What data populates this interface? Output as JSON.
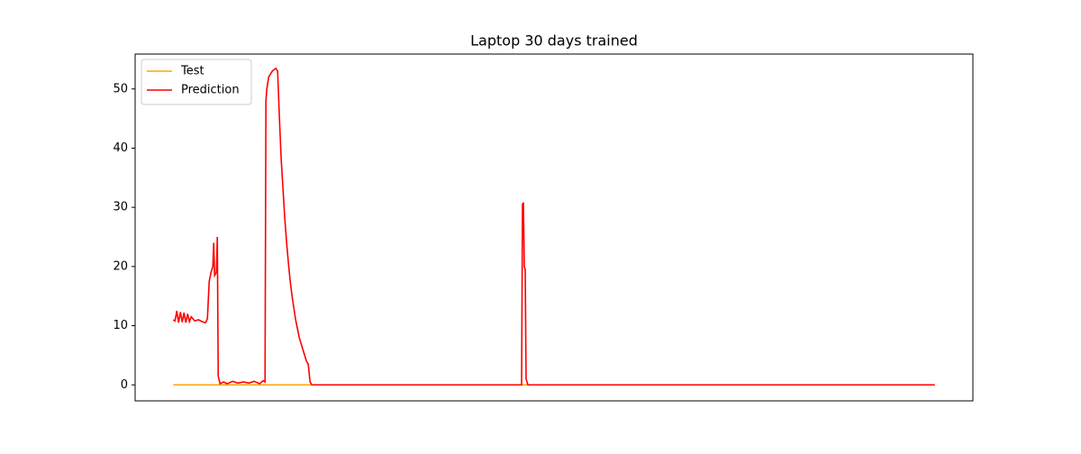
{
  "chart_data": {
    "type": "line",
    "title": "Laptop 30 days trained",
    "x": [
      0,
      2,
      4,
      6,
      8,
      10,
      12,
      14,
      16,
      18,
      20,
      24,
      28,
      32,
      36,
      38,
      40,
      42,
      44,
      45,
      46,
      48,
      49,
      50,
      52,
      56,
      60,
      66,
      72,
      78,
      84,
      90,
      96,
      100,
      102,
      103,
      104,
      106,
      110,
      114,
      116,
      118,
      120,
      122,
      124,
      126,
      128,
      130,
      132,
      134,
      136,
      138,
      140,
      142,
      144,
      146,
      148,
      150,
      152,
      154,
      387,
      388,
      389,
      390,
      391,
      392,
      394,
      846
    ],
    "series": [
      {
        "name": "Test",
        "color": "#ffa500",
        "values": [
          0,
          0,
          0,
          0,
          0,
          0,
          0,
          0,
          0,
          0,
          0,
          0,
          0,
          0,
          0,
          0,
          0,
          0,
          0,
          0,
          0,
          0,
          0,
          0,
          0,
          0,
          0,
          0,
          0,
          0,
          0,
          0,
          0,
          0,
          0,
          0,
          0,
          0,
          0,
          0,
          0,
          0,
          0,
          0,
          0,
          0,
          0,
          0,
          0,
          0,
          0,
          0,
          0,
          0,
          0,
          0,
          0,
          0,
          0,
          0,
          0,
          0,
          0,
          0,
          0,
          0,
          0,
          0
        ]
      },
      {
        "name": "Prediction",
        "color": "#ff0000",
        "values": [
          11,
          10.8,
          12.5,
          10.5,
          12.3,
          10.6,
          12.2,
          10.5,
          12,
          10.7,
          11.5,
          10.8,
          11,
          10.7,
          10.5,
          11.2,
          17.5,
          19,
          20,
          24,
          18.5,
          19,
          25,
          1.5,
          0.2,
          0.5,
          0.2,
          0.6,
          0.3,
          0.5,
          0.3,
          0.6,
          0.2,
          0.7,
          0.5,
          48,
          50,
          52,
          53,
          53.5,
          53,
          45,
          38,
          33,
          28,
          24,
          20.5,
          17.5,
          15,
          13,
          11,
          9.5,
          8,
          7,
          6,
          5,
          4,
          3.5,
          0.5,
          0,
          0,
          30.5,
          30.8,
          20,
          19.5,
          1,
          0,
          0
        ]
      }
    ],
    "xlim": [
      -42.3,
      888.3
    ],
    "ylim": [
      -2.7,
      55.9
    ],
    "yticks": [
      0,
      10,
      20,
      30,
      40,
      50
    ],
    "legend": "upper left"
  }
}
